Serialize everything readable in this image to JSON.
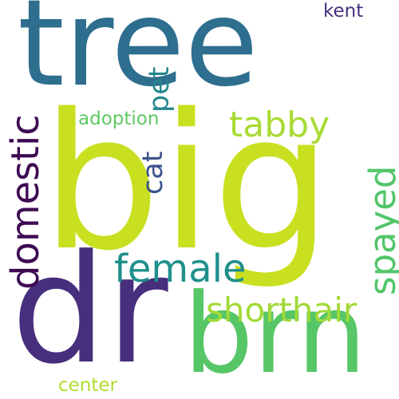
{
  "words": {
    "tree": {
      "text": "tree",
      "color": "#2e6e8e"
    },
    "big": {
      "text": "big",
      "color": "#c8e020"
    },
    "dr": {
      "text": "dr",
      "color": "#472f7d"
    },
    "brn": {
      "text": "brn",
      "color": "#56c667"
    },
    "domestic": {
      "text": "domestic",
      "color": "#3d0a52"
    },
    "female": {
      "text": "female",
      "color": "#1f8f8b"
    },
    "shorthair": {
      "text": "shorthair",
      "color": "#a2da37"
    },
    "spayed": {
      "text": "spayed",
      "color": "#52c569"
    },
    "tabby": {
      "text": "tabby",
      "color": "#a8db34"
    },
    "cat": {
      "text": "cat",
      "color": "#3b528b"
    },
    "pet": {
      "text": "pet",
      "color": "#23888e"
    },
    "adoption": {
      "text": "adoption",
      "color": "#5ec962"
    },
    "kent": {
      "text": "kent",
      "color": "#46327e"
    },
    "center": {
      "text": "center",
      "color": "#b0dd2f"
    }
  }
}
